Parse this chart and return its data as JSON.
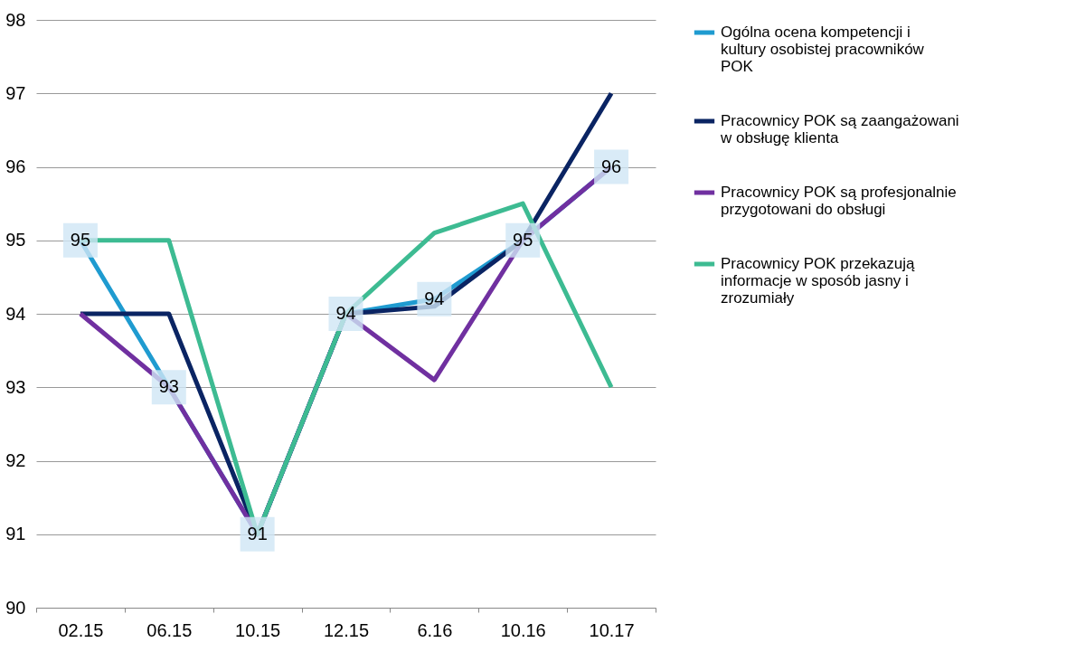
{
  "chart_data": {
    "type": "line",
    "categories": [
      "02.15",
      "06.15",
      "10.15",
      "12.15",
      "6.16",
      "10.16",
      "10.17"
    ],
    "series": [
      {
        "name": "Ogólna ocena kompetencji i\nkultury osobistej pracowników\nPOK",
        "color": "#1f9bd0",
        "values": [
          95,
          93,
          91,
          94,
          94.2,
          95,
          96
        ],
        "value_labels": [
          "95",
          "93",
          "91",
          "94",
          "94",
          "95",
          "96"
        ],
        "marker": "square"
      },
      {
        "name": "Pracownicy POK są zaangażowani\nw obsługę klienta",
        "color": "#0a2463",
        "values": [
          94,
          94,
          91,
          94,
          94.1,
          95,
          97
        ]
      },
      {
        "name": "Pracownicy POK są profesjonalnie\nprzygotowani do obsługi",
        "color": "#7030a0",
        "values": [
          94,
          93,
          91,
          94,
          93.1,
          95,
          96
        ]
      },
      {
        "name": "Pracownicy POK przekazują\ninformacje w sposób jasny i\nzrozumiały",
        "color": "#3dbb92",
        "values": [
          95,
          95,
          91,
          94,
          95.1,
          95.5,
          93
        ]
      }
    ],
    "ylim": [
      90,
      98
    ],
    "yticks": [
      90,
      91,
      92,
      93,
      94,
      95,
      96,
      97,
      98
    ],
    "grid": "y",
    "legend": "right",
    "marker": "none",
    "line_style": "solid"
  }
}
